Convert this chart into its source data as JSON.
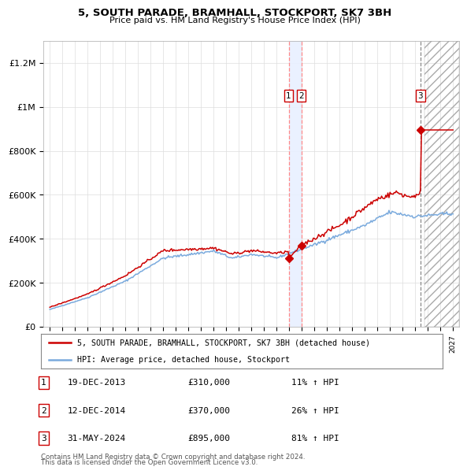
{
  "title": "5, SOUTH PARADE, BRAMHALL, STOCKPORT, SK7 3BH",
  "subtitle": "Price paid vs. HM Land Registry's House Price Index (HPI)",
  "legend_line1": "5, SOUTH PARADE, BRAMHALL, STOCKPORT, SK7 3BH (detached house)",
  "legend_line2": "HPI: Average price, detached house, Stockport",
  "sale_color": "#cc0000",
  "hpi_color": "#7aaadd",
  "transactions": [
    {
      "num": 1,
      "date": "19-DEC-2013",
      "price": 310000,
      "pct": "11%",
      "dir": "↑",
      "year": 2013.96
    },
    {
      "num": 2,
      "date": "12-DEC-2014",
      "price": 370000,
      "pct": "26%",
      "dir": "↑",
      "year": 2014.96
    },
    {
      "num": 3,
      "date": "31-MAY-2024",
      "price": 895000,
      "pct": "81%",
      "dir": "↑",
      "year": 2024.41
    }
  ],
  "footnote1": "Contains HM Land Registry data © Crown copyright and database right 2024.",
  "footnote2": "This data is licensed under the Open Government Licence v3.0.",
  "ylim": [
    0,
    1300000
  ],
  "xlim_start": 1994.5,
  "xlim_end": 2027.5,
  "hatch_region_start": 2024.75,
  "shaded_region_start": 2013.96,
  "shaded_region_end": 2014.96
}
